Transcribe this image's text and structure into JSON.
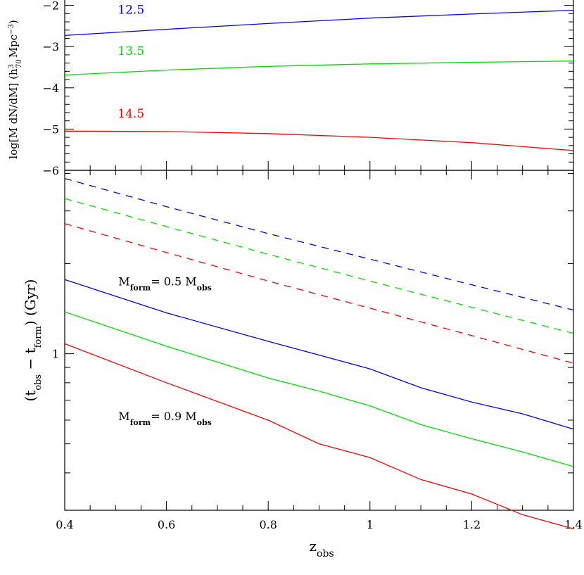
{
  "chart_data": [
    {
      "panel": "top",
      "type": "line",
      "ylabel": "log[M dN/dM] (h³₇₀ Mpc⁻³)",
      "ylabel_parts": {
        "main": "log[M  dN/dM]  (h",
        "sup": "3",
        "sub": "70",
        "mid": "Mpc",
        "sup2": "−3",
        "end": ")"
      },
      "xlim": [
        0.4,
        1.4
      ],
      "ylim": [
        -6,
        -1.7
      ],
      "yticks": [
        -6,
        -5,
        -4,
        -3,
        -2
      ],
      "ytick_labels": [
        "−6",
        "−5",
        "−4",
        "−3",
        "−2"
      ],
      "series": [
        {
          "name": "12.5",
          "color": "#0000ff",
          "label_at": [
            0.5,
            -2.2
          ],
          "x": [
            0.4,
            0.6,
            0.8,
            1.0,
            1.2,
            1.4
          ],
          "y": [
            -2.73,
            -2.58,
            -2.44,
            -2.31,
            -2.21,
            -2.12
          ]
        },
        {
          "name": "13.5",
          "color": "#00e000",
          "label_at": [
            0.5,
            -3.2
          ],
          "x": [
            0.4,
            0.6,
            0.8,
            1.0,
            1.2,
            1.4
          ],
          "y": [
            -3.69,
            -3.57,
            -3.48,
            -3.42,
            -3.38,
            -3.35
          ]
        },
        {
          "name": "14.5",
          "color": "#ff0000",
          "label_at": [
            0.5,
            -4.72
          ],
          "x": [
            0.4,
            0.6,
            0.8,
            1.0,
            1.2,
            1.4
          ],
          "y": [
            -5.05,
            -5.06,
            -5.11,
            -5.2,
            -5.33,
            -5.52
          ]
        }
      ]
    },
    {
      "panel": "bottom",
      "type": "line",
      "yscale": "log",
      "xlabel": "z",
      "xlabel_sub": "obs",
      "ylabel_parts": {
        "open": "(t",
        "sub1": "obs",
        "minus": " − t",
        "sub2": "form",
        "end": ")  (Gyr)"
      },
      "xlim": [
        0.4,
        1.4
      ],
      "ylim": [
        0.3,
        4.1
      ],
      "xticks": [
        0.4,
        0.6,
        0.8,
        1.0,
        1.2,
        1.4
      ],
      "xtick_labels": [
        "0.4",
        "0.6",
        "0.8",
        "1",
        "1.2",
        "1.4"
      ],
      "yticks_labeled": [
        1
      ],
      "ytick_labels": [
        "1"
      ],
      "annotations": [
        {
          "text": "M",
          "sub": "form",
          "rest": "= 0.5 M",
          "sub2": "obs",
          "at": [
            0.5,
            1.75
          ]
        },
        {
          "text": "M",
          "sub": "form",
          "rest": "= 0.9 M",
          "sub2": "obs",
          "at": [
            0.5,
            0.62
          ]
        }
      ],
      "series": [
        {
          "name": "12.5 (0.5 M_obs)",
          "color": "#0000ff",
          "dash": true,
          "x": [
            0.4,
            0.6,
            0.8,
            1.0,
            1.2,
            1.4
          ],
          "y": [
            3.85,
            3.1,
            2.52,
            2.07,
            1.7,
            1.4
          ]
        },
        {
          "name": "13.5 (0.5 M_obs)",
          "color": "#00e000",
          "dash": true,
          "x": [
            0.4,
            0.6,
            0.8,
            1.0,
            1.2,
            1.4
          ],
          "y": [
            3.3,
            2.66,
            2.15,
            1.75,
            1.43,
            1.17
          ]
        },
        {
          "name": "14.5 (0.5 M_obs)",
          "color": "#ff0000",
          "dash": true,
          "x": [
            0.4,
            0.6,
            0.8,
            1.0,
            1.2,
            1.4
          ],
          "y": [
            2.72,
            2.18,
            1.75,
            1.42,
            1.15,
            0.93
          ]
        },
        {
          "name": "12.5 (0.9 M_obs)",
          "color": "#0000ff",
          "dash": false,
          "x": [
            0.4,
            0.6,
            0.8,
            0.9,
            1.0,
            1.1,
            1.2,
            1.3,
            1.4
          ],
          "y": [
            1.77,
            1.37,
            1.1,
            0.99,
            0.89,
            0.77,
            0.69,
            0.63,
            0.56
          ]
        },
        {
          "name": "13.5 (0.9 M_obs)",
          "color": "#00e000",
          "dash": false,
          "x": [
            0.4,
            0.6,
            0.8,
            0.9,
            1.0,
            1.1,
            1.2,
            1.3,
            1.4
          ],
          "y": [
            1.38,
            1.06,
            0.83,
            0.75,
            0.67,
            0.58,
            0.52,
            0.47,
            0.42
          ]
        },
        {
          "name": "14.5 (0.9 M_obs)",
          "color": "#ff0000",
          "dash": false,
          "x": [
            0.4,
            0.6,
            0.8,
            0.9,
            1.0,
            1.1,
            1.2,
            1.3,
            1.4
          ],
          "y": [
            1.08,
            0.8,
            0.6,
            0.5,
            0.45,
            0.38,
            0.34,
            0.29,
            0.26
          ]
        }
      ]
    }
  ]
}
